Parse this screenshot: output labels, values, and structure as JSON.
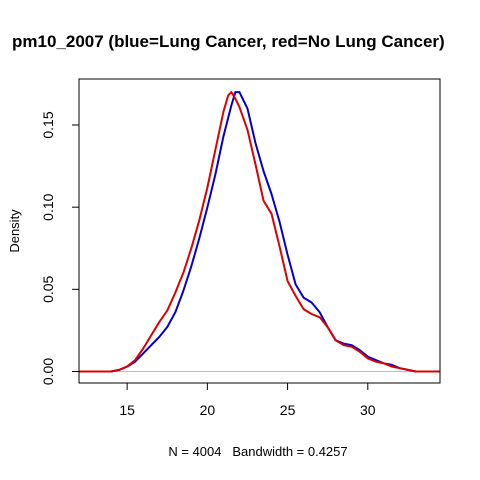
{
  "chart_data": {
    "type": "line",
    "title": "pm10_2007 (blue=Lung Cancer, red=No Lung Cancer)",
    "xlabel": "N = 4004   Bandwidth = 0.4257",
    "ylabel": "Density",
    "xlim": [
      12,
      34.5
    ],
    "ylim": [
      -0.007,
      0.178
    ],
    "x_ticks": [
      15,
      20,
      25,
      30
    ],
    "y_ticks": [
      0.0,
      0.05,
      0.1,
      0.15
    ],
    "x_tick_labels": [
      "15",
      "20",
      "25",
      "30"
    ],
    "y_tick_labels": [
      "0.00",
      "0.05",
      "0.10",
      "0.15"
    ],
    "baseline": 0,
    "grid": false,
    "series": [
      {
        "name": "Lung Cancer",
        "color": "#0000cc",
        "x": [
          12,
          14,
          14.5,
          15,
          15.5,
          16,
          16.5,
          17,
          17.5,
          18,
          18.5,
          19,
          19.5,
          20,
          20.5,
          21,
          21.5,
          21.75,
          22,
          22.5,
          23,
          23.5,
          24,
          24.5,
          25,
          25.5,
          26,
          26.5,
          27,
          27.5,
          28,
          28.5,
          29,
          29.5,
          30,
          30.5,
          31,
          31.5,
          32,
          32.5,
          33,
          34.5
        ],
        "y": [
          0,
          0,
          0.001,
          0.003,
          0.006,
          0.011,
          0.016,
          0.021,
          0.027,
          0.036,
          0.049,
          0.064,
          0.081,
          0.1,
          0.12,
          0.143,
          0.162,
          0.17,
          0.17,
          0.16,
          0.139,
          0.122,
          0.108,
          0.091,
          0.071,
          0.053,
          0.045,
          0.042,
          0.036,
          0.027,
          0.019,
          0.017,
          0.016,
          0.013,
          0.009,
          0.007,
          0.005,
          0.004,
          0.002,
          0.001,
          0,
          0
        ]
      },
      {
        "name": "No Lung Cancer",
        "color": "#dd0000",
        "x": [
          12,
          14,
          14.5,
          15,
          15.5,
          16,
          16.5,
          17,
          17.5,
          18,
          18.5,
          19,
          19.5,
          20,
          20.5,
          21,
          21.3,
          21.5,
          21.75,
          22,
          22.5,
          23,
          23.5,
          24,
          24.5,
          25,
          25.5,
          26,
          26.5,
          27,
          27.5,
          28,
          28.5,
          29,
          29.5,
          30,
          30.5,
          31,
          31.5,
          32,
          32.5,
          33,
          34.5
        ],
        "y": [
          0,
          0,
          0.001,
          0.003,
          0.007,
          0.014,
          0.022,
          0.03,
          0.037,
          0.048,
          0.06,
          0.075,
          0.092,
          0.112,
          0.135,
          0.158,
          0.168,
          0.17,
          0.166,
          0.161,
          0.147,
          0.126,
          0.104,
          0.096,
          0.076,
          0.055,
          0.046,
          0.038,
          0.035,
          0.033,
          0.027,
          0.019,
          0.016,
          0.015,
          0.012,
          0.008,
          0.006,
          0.005,
          0.003,
          0.002,
          0.001,
          0,
          0
        ]
      }
    ]
  }
}
